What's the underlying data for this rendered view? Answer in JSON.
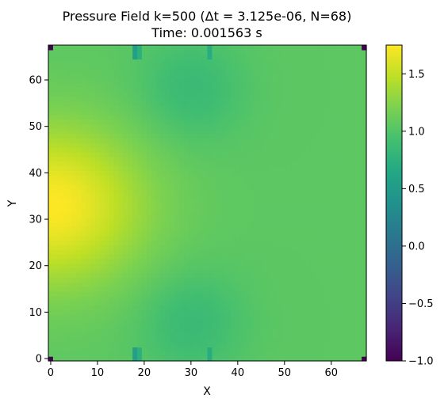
{
  "chart_data": {
    "type": "heatmap",
    "title_line1": "Pressure Field k=500 (Δt = 3.125e-06, N=68)",
    "title_line2": "Time: 0.001563 s",
    "xlabel": "X",
    "ylabel": "Y",
    "xlim": [
      -0.5,
      67.5
    ],
    "ylim": [
      -0.5,
      67.5
    ],
    "xticks": [
      "0",
      "10",
      "20",
      "30",
      "40",
      "50",
      "60"
    ],
    "xtick_values": [
      0,
      10,
      20,
      30,
      40,
      50,
      60
    ],
    "yticks": [
      "0",
      "10",
      "20",
      "30",
      "40",
      "50",
      "60"
    ],
    "ytick_values": [
      0,
      10,
      20,
      30,
      40,
      50,
      60
    ],
    "colormap": "viridis",
    "colorbar": {
      "vmin": -1.0,
      "vmax": 1.75,
      "ticks": [
        "−1.0",
        "−0.5",
        "0.0",
        "0.5",
        "1.0",
        "1.5"
      ],
      "tick_values": [
        -1.0,
        -0.5,
        0.0,
        0.5,
        1.0,
        1.5
      ]
    },
    "grid_size": 68,
    "field_description": {
      "max_value": 1.75,
      "max_location": [
        0,
        33
      ],
      "background_value": 1.05,
      "low_lobes_value": 0.85,
      "low_lobe_centers": [
        [
          30,
          58
        ],
        [
          30,
          8
        ]
      ],
      "corner_value": -1.0
    }
  }
}
